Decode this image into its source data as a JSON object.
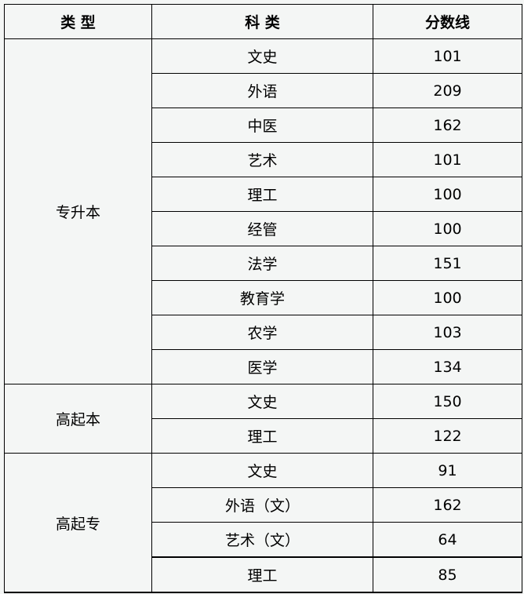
{
  "headers": [
    "类 型",
    "科 类",
    "分数线"
  ],
  "groups": [
    {
      "type": "专升本",
      "rows": [
        {
          "subject": "文史",
          "score": "101"
        },
        {
          "subject": "外语",
          "score": "209"
        },
        {
          "subject": "中医",
          "score": "162"
        },
        {
          "subject": "艺术",
          "score": "101"
        },
        {
          "subject": "理工",
          "score": "100"
        },
        {
          "subject": "经管",
          "score": "100"
        },
        {
          "subject": "法学",
          "score": "151"
        },
        {
          "subject": "教育学",
          "score": "100"
        },
        {
          "subject": "农学",
          "score": "103"
        },
        {
          "subject": "医学",
          "score": "134"
        }
      ]
    },
    {
      "type": "高起本",
      "rows": [
        {
          "subject": "文史",
          "score": "150"
        },
        {
          "subject": "理工",
          "score": "122"
        }
      ]
    },
    {
      "type": "高起专",
      "rows": [
        {
          "subject": "文史",
          "score": "91"
        },
        {
          "subject": "外语（文）",
          "score": "162"
        },
        {
          "subject": "艺术（文）",
          "score": "64"
        },
        {
          "subject": "理工",
          "score": "85"
        }
      ]
    }
  ]
}
